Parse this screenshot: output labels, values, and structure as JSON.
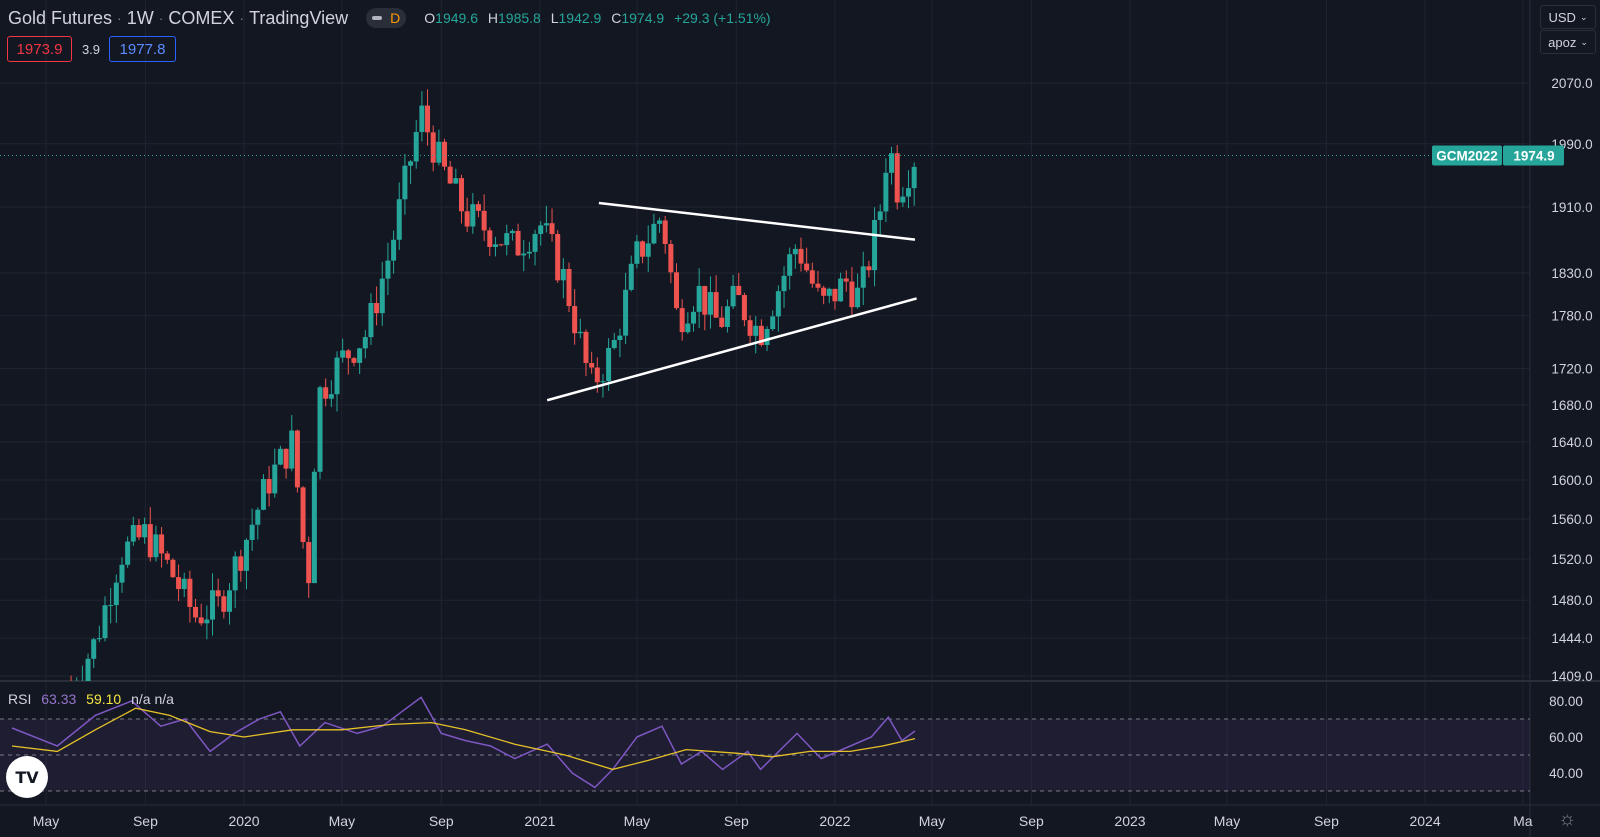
{
  "header": {
    "symbol": "Gold Futures",
    "interval": "1W",
    "exchange": "COMEX",
    "platform": "TradingView",
    "mode_letter": "D",
    "ohlc": {
      "o_label": "O",
      "o": "1949.6",
      "h_label": "H",
      "h": "1985.8",
      "l_label": "L",
      "l": "1942.9",
      "c_label": "C",
      "c": "1974.9",
      "change": "+29.3 (+1.51%)"
    }
  },
  "trade": {
    "sell": "1973.9",
    "spread": "3.9",
    "buy": "1977.8"
  },
  "controls": {
    "currency": "USD",
    "scale": "apoz"
  },
  "price_label": {
    "symbol": "GCM2022",
    "value": "1974.9"
  },
  "rsi_legend": {
    "label": "RSI",
    "rsi": "63.33",
    "ma": "59.10",
    "na1": "n/a",
    "na2": "n/a"
  },
  "logo": "TV",
  "icons": {
    "settings": "gear-icon",
    "logo": "tradingview-logo-icon"
  },
  "colors": {
    "bg": "#131722",
    "grid": "#1f2430",
    "up": "#26a69a",
    "down": "#ef5350",
    "rsi_line": "#7e57c2",
    "rsi_ma": "#e6c229",
    "text": "#d1d4dc",
    "axis_text": "#d1d4dc",
    "price_tag": "#26a69a",
    "trendline": "#ffffff"
  },
  "chart_data": {
    "type": "candlestick",
    "scale": "log",
    "price_ticks": [
      2070.0,
      1990.0,
      1910.0,
      1830.0,
      1780.0,
      1720.0,
      1680.0,
      1640.0,
      1600.0,
      1560.0,
      1520.0,
      1480.0,
      1444.0,
      1409.0
    ],
    "last_price": 1974.9,
    "x_ticks": [
      {
        "label": "May",
        "date": "2019-05-01"
      },
      {
        "label": "Sep",
        "date": "2019-09-01"
      },
      {
        "label": "2020",
        "date": "2020-01-01"
      },
      {
        "label": "May",
        "date": "2020-05-01"
      },
      {
        "label": "Sep",
        "date": "2020-09-01"
      },
      {
        "label": "2021",
        "date": "2021-01-01"
      },
      {
        "label": "May",
        "date": "2021-05-01"
      },
      {
        "label": "Sep",
        "date": "2021-09-01"
      },
      {
        "label": "2022",
        "date": "2022-01-01"
      },
      {
        "label": "May",
        "date": "2022-05-01"
      },
      {
        "label": "Sep",
        "date": "2022-09-01"
      },
      {
        "label": "2023",
        "date": "2023-01-01"
      },
      {
        "label": "May",
        "date": "2023-05-01"
      },
      {
        "label": "Sep",
        "date": "2023-09-01"
      },
      {
        "label": "2024",
        "date": "2024-01-01"
      },
      {
        "label": "Ma",
        "date": "2024-05-01"
      }
    ],
    "close_path": [
      {
        "date": "2019-06-01",
        "close": 1400
      },
      {
        "date": "2019-07-01",
        "close": 1440
      },
      {
        "date": "2019-08-01",
        "close": 1525
      },
      {
        "date": "2019-09-01",
        "close": 1545
      },
      {
        "date": "2019-10-01",
        "close": 1510
      },
      {
        "date": "2019-11-01",
        "close": 1465
      },
      {
        "date": "2019-12-01",
        "close": 1475
      },
      {
        "date": "2020-01-01",
        "close": 1535
      },
      {
        "date": "2020-02-01",
        "close": 1600
      },
      {
        "date": "2020-03-01",
        "close": 1640
      },
      {
        "date": "2020-03-20",
        "close": 1490
      },
      {
        "date": "2020-04-01",
        "close": 1690
      },
      {
        "date": "2020-05-01",
        "close": 1730
      },
      {
        "date": "2020-06-01",
        "close": 1760
      },
      {
        "date": "2020-07-01",
        "close": 1860
      },
      {
        "date": "2020-08-07",
        "close": 2030
      },
      {
        "date": "2020-09-01",
        "close": 1960
      },
      {
        "date": "2020-10-01",
        "close": 1900
      },
      {
        "date": "2020-11-01",
        "close": 1880
      },
      {
        "date": "2020-12-01",
        "close": 1860
      },
      {
        "date": "2021-01-01",
        "close": 1890
      },
      {
        "date": "2021-02-01",
        "close": 1820
      },
      {
        "date": "2021-03-05",
        "close": 1700
      },
      {
        "date": "2021-04-01",
        "close": 1740
      },
      {
        "date": "2021-05-01",
        "close": 1850
      },
      {
        "date": "2021-06-01",
        "close": 1900
      },
      {
        "date": "2021-06-20",
        "close": 1775
      },
      {
        "date": "2021-07-15",
        "close": 1810
      },
      {
        "date": "2021-08-10",
        "close": 1770
      },
      {
        "date": "2021-09-01",
        "close": 1800
      },
      {
        "date": "2021-09-30",
        "close": 1760
      },
      {
        "date": "2021-11-15",
        "close": 1865
      },
      {
        "date": "2021-12-15",
        "close": 1790
      },
      {
        "date": "2022-01-15",
        "close": 1820
      },
      {
        "date": "2022-02-01",
        "close": 1800
      },
      {
        "date": "2022-02-25",
        "close": 1900
      },
      {
        "date": "2022-03-08",
        "close": 1995
      },
      {
        "date": "2022-03-20",
        "close": 1930
      },
      {
        "date": "2022-04-10",
        "close": 1974.9
      }
    ],
    "annotations": {
      "upper_trendline": [
        {
          "date": "2021-03-15",
          "price": 1915
        },
        {
          "date": "2022-04-10",
          "price": 1870
        }
      ],
      "lower_trendline": [
        {
          "date": "2021-01-10",
          "price": 1685
        },
        {
          "date": "2022-04-12",
          "price": 1800
        }
      ]
    },
    "rsi": {
      "ticks": [
        80.0,
        60.0,
        40.0
      ],
      "bands": [
        70,
        50,
        30
      ],
      "last": 63.33,
      "ma_last": 59.1,
      "path": [
        {
          "date": "2019-03-20",
          "rsi": 65
        },
        {
          "date": "2019-05-15",
          "rsi": 55
        },
        {
          "date": "2019-07-01",
          "rsi": 72
        },
        {
          "date": "2019-08-15",
          "rsi": 80
        },
        {
          "date": "2019-09-20",
          "rsi": 66
        },
        {
          "date": "2019-10-20",
          "rsi": 70
        },
        {
          "date": "2019-11-20",
          "rsi": 52
        },
        {
          "date": "2019-12-20",
          "rsi": 62
        },
        {
          "date": "2020-01-20",
          "rsi": 70
        },
        {
          "date": "2020-02-15",
          "rsi": 74
        },
        {
          "date": "2020-03-10",
          "rsi": 55
        },
        {
          "date": "2020-04-10",
          "rsi": 68
        },
        {
          "date": "2020-05-20",
          "rsi": 62
        },
        {
          "date": "2020-06-20",
          "rsi": 66
        },
        {
          "date": "2020-07-20",
          "rsi": 76
        },
        {
          "date": "2020-08-07",
          "rsi": 82
        },
        {
          "date": "2020-09-01",
          "rsi": 62
        },
        {
          "date": "2020-10-01",
          "rsi": 58
        },
        {
          "date": "2020-11-01",
          "rsi": 55
        },
        {
          "date": "2020-12-01",
          "rsi": 48
        },
        {
          "date": "2021-01-10",
          "rsi": 56
        },
        {
          "date": "2021-02-10",
          "rsi": 40
        },
        {
          "date": "2021-03-10",
          "rsi": 32
        },
        {
          "date": "2021-04-01",
          "rsi": 42
        },
        {
          "date": "2021-05-01",
          "rsi": 60
        },
        {
          "date": "2021-06-01",
          "rsi": 66
        },
        {
          "date": "2021-06-25",
          "rsi": 45
        },
        {
          "date": "2021-07-20",
          "rsi": 52
        },
        {
          "date": "2021-08-15",
          "rsi": 42
        },
        {
          "date": "2021-09-15",
          "rsi": 52
        },
        {
          "date": "2021-10-01",
          "rsi": 42
        },
        {
          "date": "2021-11-15",
          "rsi": 62
        },
        {
          "date": "2021-12-15",
          "rsi": 48
        },
        {
          "date": "2022-01-20",
          "rsi": 55
        },
        {
          "date": "2022-02-15",
          "rsi": 60
        },
        {
          "date": "2022-03-08",
          "rsi": 71
        },
        {
          "date": "2022-03-25",
          "rsi": 58
        },
        {
          "date": "2022-04-10",
          "rsi": 63.33
        }
      ],
      "ma_path": [
        {
          "date": "2019-03-20",
          "rsi": 55
        },
        {
          "date": "2019-05-15",
          "rsi": 52
        },
        {
          "date": "2019-07-01",
          "rsi": 64
        },
        {
          "date": "2019-08-20",
          "rsi": 76
        },
        {
          "date": "2019-10-01",
          "rsi": 72
        },
        {
          "date": "2019-11-20",
          "rsi": 63
        },
        {
          "date": "2020-01-01",
          "rsi": 60
        },
        {
          "date": "2020-03-01",
          "rsi": 64
        },
        {
          "date": "2020-05-01",
          "rsi": 64
        },
        {
          "date": "2020-07-01",
          "rsi": 67
        },
        {
          "date": "2020-08-20",
          "rsi": 68
        },
        {
          "date": "2020-10-01",
          "rsi": 64
        },
        {
          "date": "2020-12-01",
          "rsi": 56
        },
        {
          "date": "2021-02-01",
          "rsi": 50
        },
        {
          "date": "2021-04-01",
          "rsi": 42
        },
        {
          "date": "2021-05-15",
          "rsi": 47
        },
        {
          "date": "2021-07-01",
          "rsi": 53
        },
        {
          "date": "2021-09-01",
          "rsi": 51
        },
        {
          "date": "2021-10-15",
          "rsi": 49
        },
        {
          "date": "2021-12-01",
          "rsi": 52
        },
        {
          "date": "2022-01-20",
          "rsi": 52
        },
        {
          "date": "2022-03-01",
          "rsi": 55
        },
        {
          "date": "2022-04-10",
          "rsi": 59.1
        }
      ]
    }
  }
}
